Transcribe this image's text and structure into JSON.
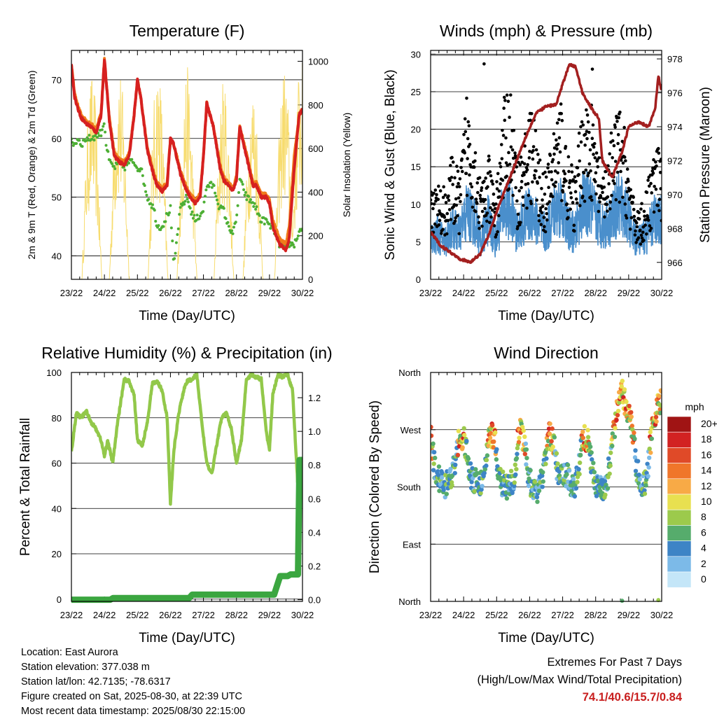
{
  "colors": {
    "temp_2m": "#d62020",
    "temp_9m": "#f07b1a",
    "dewpoint": "#4daf34",
    "solar": "#f7dc6f",
    "wind": "#4a8fcc",
    "gust": "#000000",
    "pressure": "#a31f1f",
    "rh": "#92c84a",
    "precip": "#3ba640"
  },
  "chart_data": [
    {
      "id": "temperature",
      "type": "line",
      "title": "Temperature (F)",
      "xlabel": "Time (Day/UTC)",
      "ylabel": "2m & 9m T (Red, Orange) & 2m Td (Green)",
      "ylabel_right": "Solar Insolation (Yellow)",
      "x_ticks": [
        "23/22",
        "24/22",
        "25/22",
        "26/22",
        "27/22",
        "28/22",
        "29/22",
        "30/22"
      ],
      "ylim": [
        36,
        75
      ],
      "y_ticks": [
        40,
        50,
        60,
        70
      ],
      "ylim_right": [
        0,
        1050
      ],
      "y_ticks_right": [
        0,
        200,
        400,
        600,
        800,
        1000
      ],
      "grid": true,
      "x_days": [
        0,
        0.1,
        0.2,
        0.3,
        0.45,
        0.6,
        0.75,
        0.9,
        1.0,
        1.05,
        1.15,
        1.3,
        1.45,
        1.6,
        1.75,
        1.9,
        2.0,
        2.1,
        2.3,
        2.5,
        2.6,
        2.75,
        2.9,
        3.0,
        3.1,
        3.3,
        3.5,
        3.6,
        3.75,
        3.9,
        4.0,
        4.1,
        4.3,
        4.5,
        4.6,
        4.75,
        4.9,
        5.0,
        5.1,
        5.3,
        5.5,
        5.6,
        5.75,
        5.9,
        6.0,
        6.1,
        6.3,
        6.5,
        6.6,
        6.75,
        6.9,
        7.0
      ],
      "series": [
        {
          "key": "t2m",
          "values": [
            72.5,
            67,
            65,
            63.5,
            62.5,
            62,
            61,
            64,
            73.5,
            70,
            63,
            57,
            56,
            55.5,
            57,
            64,
            70,
            67,
            58,
            53.5,
            52,
            51,
            52,
            60,
            59,
            54,
            51,
            50,
            49,
            50,
            57,
            66,
            62,
            55,
            53,
            52,
            51,
            53,
            62,
            57,
            52,
            52,
            50,
            50,
            49,
            45,
            42,
            41,
            43,
            55,
            64,
            65
          ]
        },
        {
          "key": "t9m",
          "values": [
            72.5,
            67.5,
            65.5,
            64,
            63,
            62.5,
            61.5,
            64.5,
            73.5,
            70,
            63.5,
            57.5,
            56.5,
            56,
            57.5,
            64,
            70,
            67,
            58.5,
            54,
            52.5,
            51.5,
            52.5,
            60,
            59,
            54.5,
            51.5,
            50.5,
            49.5,
            50.5,
            57,
            66,
            62,
            55.5,
            53.5,
            52.5,
            51.5,
            53.5,
            62,
            57.5,
            52.5,
            52.5,
            50.5,
            50.5,
            49.5,
            46,
            43,
            42,
            45,
            57,
            64,
            65
          ]
        },
        {
          "key": "td",
          "values": [
            59.5,
            59,
            60,
            59,
            60,
            60,
            60.5,
            61,
            63,
            59,
            56,
            55,
            56,
            55,
            56,
            56,
            55,
            55,
            50,
            48,
            45,
            45,
            47,
            48,
            38,
            48,
            50,
            48,
            46,
            47,
            48,
            52,
            52,
            48,
            48,
            45,
            44,
            46,
            53,
            50,
            49,
            48,
            46,
            46,
            45,
            45,
            42,
            41,
            42,
            42,
            44,
            45
          ]
        }
      ],
      "solar_peaks": [
        0.62,
        1.45,
        2.62,
        3.5,
        4.62,
        5.5,
        6.45,
        6.95
      ],
      "solar_max": [
        950,
        1000,
        1000,
        980,
        930,
        900,
        980,
        1030
      ]
    },
    {
      "id": "winds",
      "type": "line",
      "title": "Winds (mph) & Pressure (mb)",
      "xlabel": "Time (Day/UTC)",
      "ylabel": "Sonic Wind & Gust (Blue, Black)",
      "ylabel_right": "Station Pressure (Maroon)",
      "x_ticks": [
        "23/22",
        "24/22",
        "25/22",
        "26/22",
        "27/22",
        "28/22",
        "29/22",
        "30/22"
      ],
      "ylim": [
        0,
        30.5
      ],
      "y_ticks": [
        0,
        5,
        10,
        15,
        20,
        25,
        30
      ],
      "ylim_right": [
        965,
        978.5
      ],
      "y_ticks_right": [
        966,
        968,
        970,
        972,
        974,
        976,
        978
      ],
      "grid": true,
      "wind_mean": [
        5.5,
        6,
        5,
        7,
        6,
        9,
        8,
        5,
        8,
        5,
        9,
        9.5,
        6,
        8,
        9,
        7,
        6,
        9,
        10,
        7,
        6,
        10,
        10,
        8,
        7,
        8,
        10,
        9,
        6,
        5,
        6,
        8,
        8
      ],
      "gust_mean": [
        9,
        9,
        9,
        12,
        10,
        18,
        15,
        9,
        12,
        8,
        17,
        19,
        11,
        14,
        17,
        12,
        10,
        15,
        18,
        12,
        10,
        17,
        18,
        13,
        11,
        14,
        17,
        14,
        8,
        7,
        9,
        13,
        12
      ],
      "pressure_x": [
        0,
        0.3,
        0.6,
        0.9,
        1.2,
        1.5,
        1.8,
        2.0,
        2.3,
        2.6,
        2.9,
        3.2,
        3.5,
        3.8,
        4.0,
        4.2,
        4.4,
        4.6,
        4.9,
        5.1,
        5.2,
        5.5,
        5.8,
        6.0,
        6.3,
        6.6,
        6.8,
        6.9,
        7.0
      ],
      "pressure_y": [
        967.8,
        967,
        966.6,
        966.2,
        966,
        966.5,
        967.8,
        969,
        970.5,
        972,
        973.5,
        974.8,
        975.2,
        975.3,
        976.5,
        977.7,
        977.5,
        976,
        975,
        974.5,
        972,
        971,
        972.5,
        974,
        974.3,
        974,
        975,
        977,
        976
      ],
      "gust_outliers": [
        [
          1.62,
          28.7
        ],
        [
          4.9,
          28
        ]
      ]
    },
    {
      "id": "rh_precip",
      "type": "line",
      "title": "Relative Humidity (%) & Precipitation (in)",
      "xlabel": "Time (Day/UTC)",
      "ylabel": "Percent & Total Rainfall",
      "x_ticks": [
        "23/22",
        "24/22",
        "25/22",
        "26/22",
        "27/22",
        "28/22",
        "29/22",
        "30/22"
      ],
      "ylim": [
        -1,
        100
      ],
      "y_ticks": [
        0,
        20,
        40,
        60,
        80,
        100
      ],
      "ylim_right": [
        -0.01,
        1.35
      ],
      "y_ticks_right": [
        "0.0",
        "0.2",
        "0.4",
        "0.6",
        "0.8",
        "1.0",
        "1.2"
      ],
      "grid": true,
      "rh_x": [
        0,
        0.15,
        0.3,
        0.45,
        0.6,
        0.75,
        0.9,
        1.0,
        1.1,
        1.25,
        1.4,
        1.6,
        1.75,
        1.9,
        2.0,
        2.15,
        2.3,
        2.45,
        2.6,
        2.75,
        2.9,
        3.0,
        3.1,
        3.25,
        3.4,
        3.5,
        3.65,
        3.8,
        3.95,
        4.1,
        4.25,
        4.4,
        4.55,
        4.7,
        4.85,
        5.0,
        5.15,
        5.3,
        5.45,
        5.6,
        5.75,
        5.9,
        6.0,
        6.1,
        6.25,
        6.4,
        6.55,
        6.7,
        6.85,
        7.0
      ],
      "rh_y": [
        65,
        82,
        80,
        83,
        78,
        75,
        70,
        63,
        70,
        60,
        78,
        97,
        96,
        90,
        70,
        68,
        78,
        95,
        96,
        92,
        80,
        42,
        65,
        82,
        92,
        96,
        97,
        99,
        78,
        60,
        55,
        68,
        80,
        82,
        75,
        60,
        70,
        97,
        99,
        98,
        97,
        74,
        66,
        90,
        99,
        98,
        99,
        92,
        52,
        45
      ],
      "precip_x": [
        0,
        1.3,
        1.4,
        3.95,
        4.05,
        6.8,
        7.0,
        7.05,
        7.25,
        7.35,
        7.6,
        7.65,
        7.75
      ],
      "precip_y": [
        0,
        0,
        0.01,
        0.01,
        0.03,
        0.03,
        0.14,
        0.14,
        0.14,
        0.15,
        0.15,
        0.83,
        0.83
      ]
    },
    {
      "id": "wind_direction",
      "type": "scatter",
      "title": "Wind Direction",
      "xlabel": "Time (Day/UTC)",
      "ylabel": "Direction (Colored By Speed)",
      "x_ticks": [
        "23/22",
        "24/22",
        "25/22",
        "26/22",
        "27/22",
        "28/22",
        "29/22",
        "30/22"
      ],
      "y_ticks": [
        "North",
        "East",
        "South",
        "West",
        "North"
      ],
      "ylim": [
        0,
        360
      ],
      "grid": true,
      "dir_base": [
        260,
        200,
        190,
        180,
        195,
        215,
        265,
        250,
        200,
        190,
        185,
        200,
        265,
        255,
        195,
        180,
        180,
        195,
        270,
        255,
        190,
        180,
        175,
        200,
        265,
        250,
        195,
        200,
        195,
        175,
        200,
        260,
        255,
        200,
        180,
        175,
        195,
        255,
        300,
        330,
        300,
        275,
        205,
        180,
        195,
        270,
        300,
        320
      ],
      "colorbar": {
        "title": "mph",
        "labels": [
          "20+",
          "18",
          "16",
          "14",
          "12",
          "10",
          "8",
          "6",
          "4",
          "2",
          "0"
        ],
        "colors": [
          "#a01414",
          "#d22222",
          "#e04a28",
          "#f0762a",
          "#f8aa46",
          "#e8e050",
          "#9cca4c",
          "#56ac6c",
          "#3d84c6",
          "#7cbae8",
          "#c4e6f8"
        ]
      }
    }
  ],
  "info": {
    "location": "Location: East Aurora",
    "elevation": "Station elevation: 377.038 m",
    "latlon": "Station lat/lon: 42.7135; -78.6317",
    "created": "Figure created on Sat, 2025-08-30, at 22:39 UTC",
    "recent": "Most recent data timestamp: 2025/08/30 22:15:00"
  },
  "extremes": {
    "title": "Extremes For Past 7 Days",
    "subtitle": "(High/Low/Max Wind/Total Precipitation)",
    "values": "74.1/40.6/15.7/0.84"
  }
}
